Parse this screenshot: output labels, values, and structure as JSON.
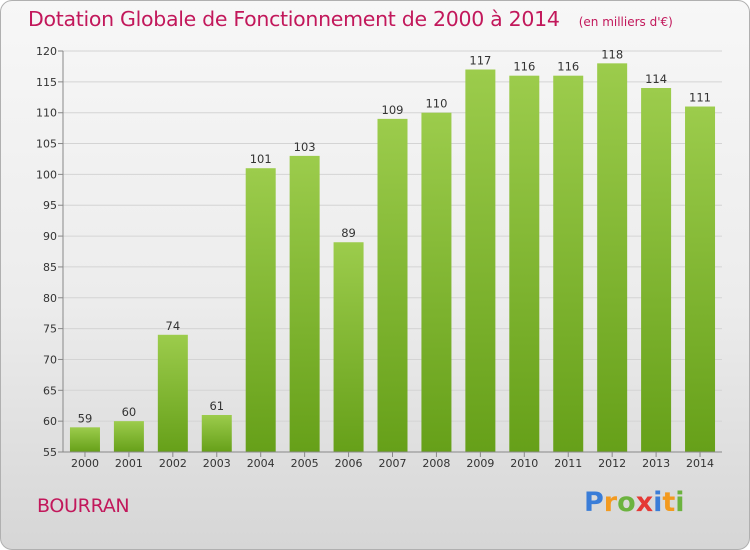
{
  "header": {
    "title": "Dotation Globale de Fonctionnement de 2000 à 2014",
    "unit": "(en milliers d'€)"
  },
  "footer": {
    "town": "BOURRAN",
    "brand": "Proxiti"
  },
  "colors": {
    "title": "#c2185b",
    "bar_top": "#9ccc4c",
    "bar_bottom": "#66a019",
    "brand_letters": [
      "#3a7dd8",
      "#f39a1f",
      "#6cb33f",
      "#e53935",
      "#3a7dd8",
      "#f39a1f",
      "#6cb33f"
    ]
  },
  "chart_data": {
    "type": "bar",
    "title": "Dotation Globale de Fonctionnement de 2000 à 2014",
    "subtitle": "(en milliers d'€)",
    "xlabel": "",
    "ylabel": "",
    "categories": [
      "2000",
      "2001",
      "2002",
      "2003",
      "2004",
      "2005",
      "2006",
      "2007",
      "2008",
      "2009",
      "2010",
      "2011",
      "2012",
      "2013",
      "2014"
    ],
    "values": [
      59,
      60,
      74,
      61,
      101,
      103,
      89,
      109,
      110,
      117,
      116,
      116,
      118,
      114,
      111
    ],
    "ylim": [
      55,
      120
    ],
    "yticks": [
      55,
      60,
      65,
      70,
      75,
      80,
      85,
      90,
      95,
      100,
      105,
      110,
      115,
      120
    ],
    "grid": true,
    "data_labels": true
  }
}
